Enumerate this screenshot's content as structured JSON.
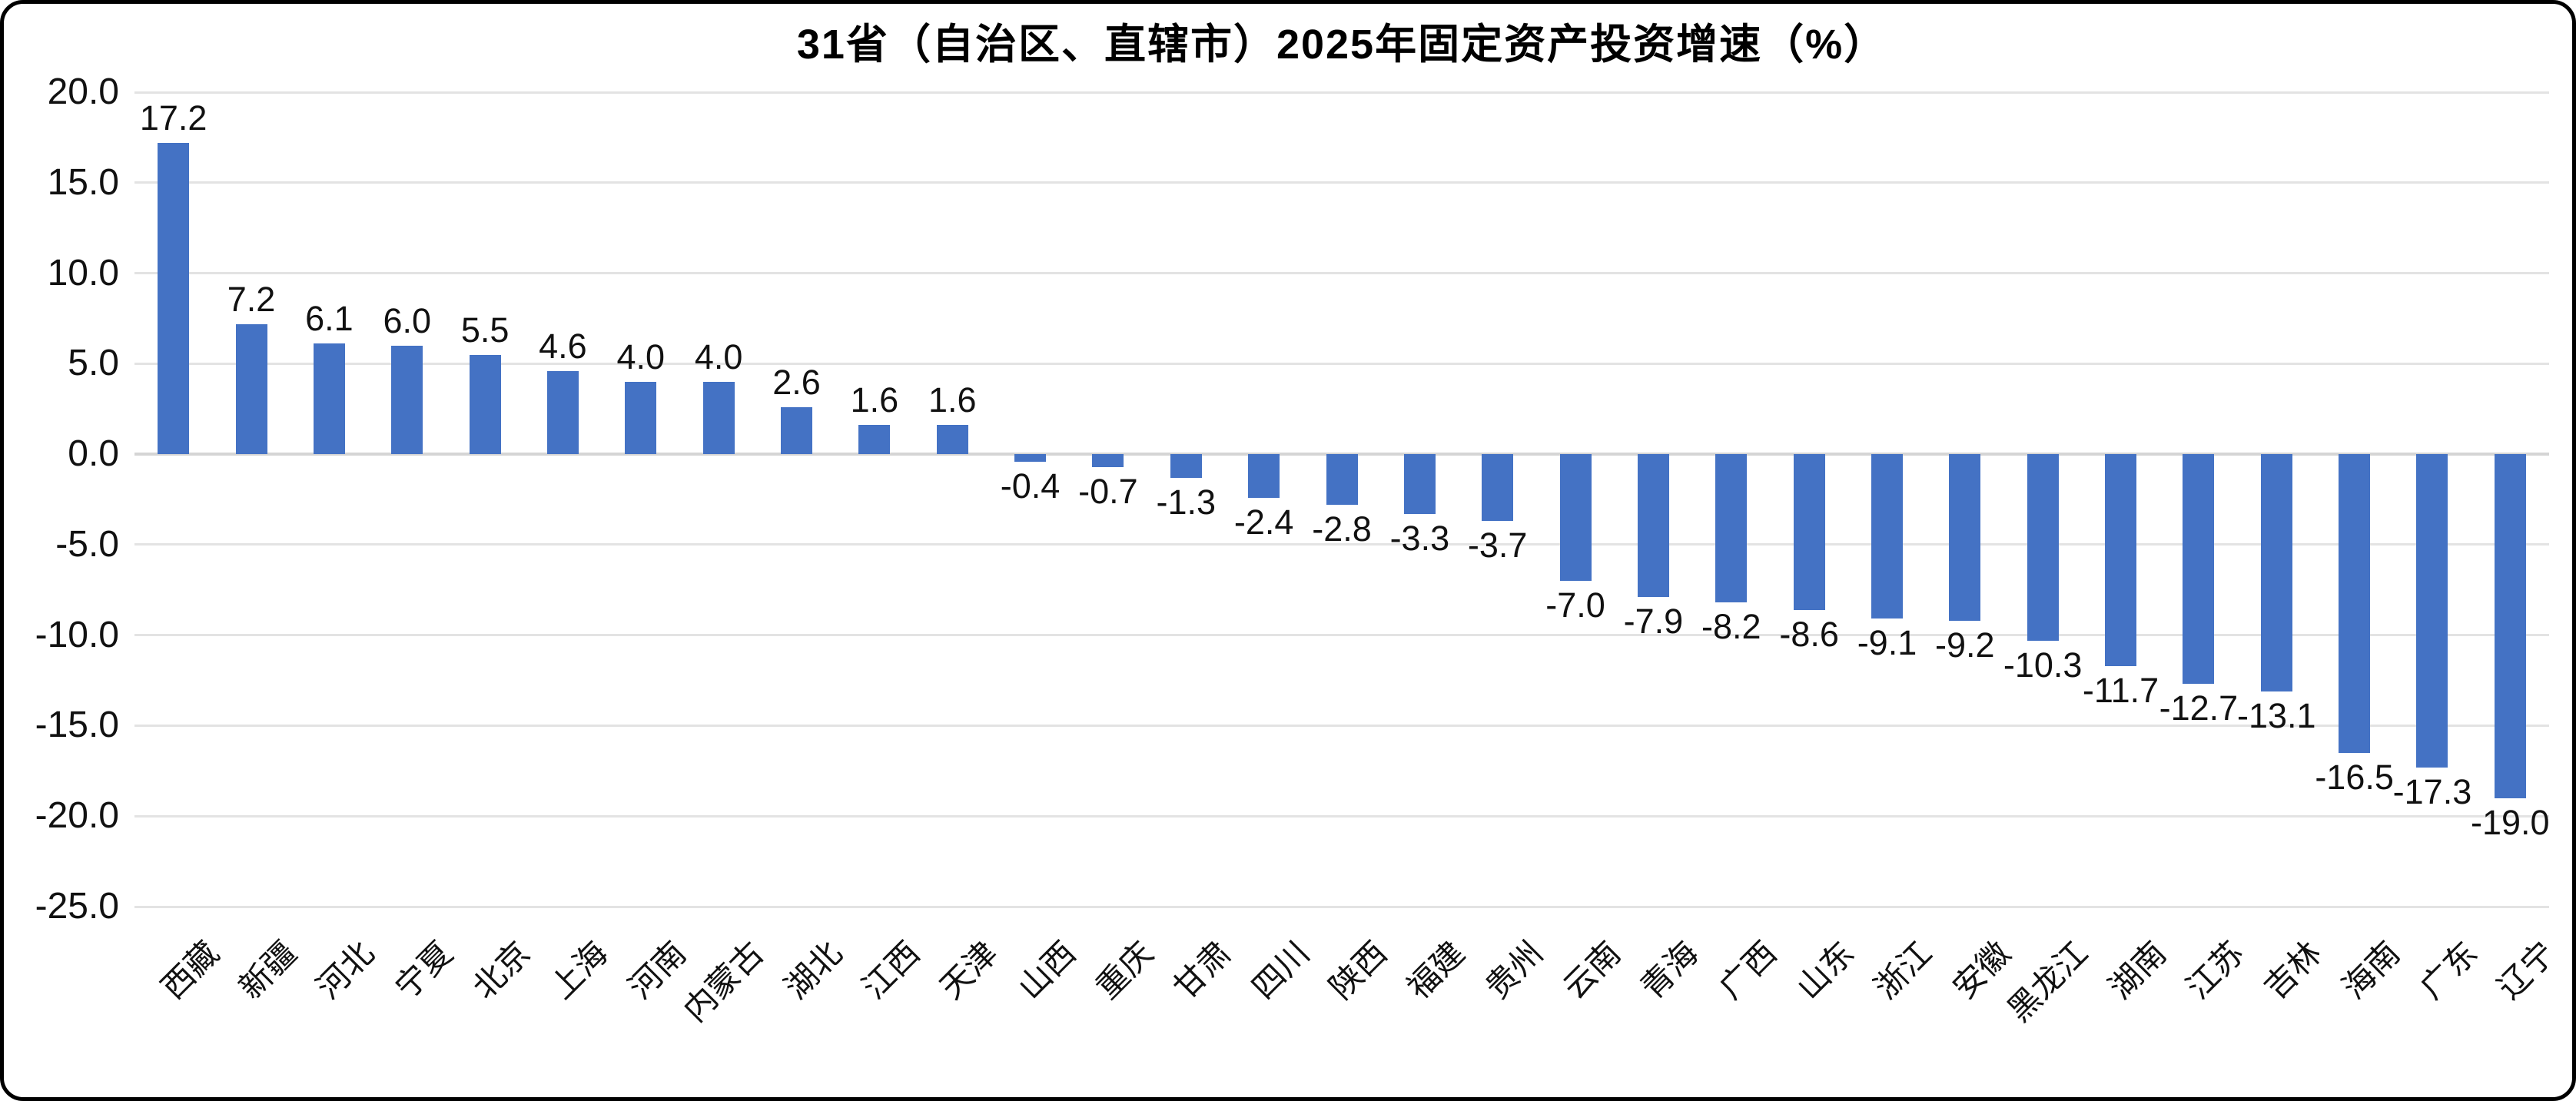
{
  "chart_data": {
    "type": "bar",
    "title": "31省（自治区、直辖市）2025年固定资产投资增速（%）",
    "categories": [
      "西藏",
      "新疆",
      "河北",
      "宁夏",
      "北京",
      "上海",
      "河南",
      "内蒙古",
      "湖北",
      "江西",
      "天津",
      "山西",
      "重庆",
      "甘肃",
      "四川",
      "陕西",
      "福建",
      "贵州",
      "云南",
      "青海",
      "广西",
      "山东",
      "浙江",
      "安徽",
      "黑龙江",
      "湖南",
      "江苏",
      "吉林",
      "海南",
      "广东",
      "辽宁"
    ],
    "values": [
      17.2,
      7.2,
      6.1,
      6.0,
      5.5,
      4.6,
      4.0,
      4.0,
      2.6,
      1.6,
      1.6,
      -0.4,
      -0.7,
      -1.3,
      -2.4,
      -2.8,
      -3.3,
      -3.7,
      -7.0,
      -7.9,
      -8.2,
      -8.6,
      -9.1,
      -9.2,
      -10.3,
      -11.7,
      -12.7,
      -13.1,
      -16.5,
      -17.3,
      -19.0
    ],
    "value_labels": [
      "17.2",
      "7.2",
      "6.1",
      "6.0",
      "5.5",
      "4.6",
      "4.0",
      "4.0",
      "2.6",
      "1.6",
      "1.6",
      "-0.4",
      "-0.7",
      "-1.3",
      "-2.4",
      "-2.8",
      "-3.3",
      "-3.7",
      "-7.0",
      "-7.9",
      "-8.2",
      "-8.6",
      "-9.1",
      "-9.2",
      "-10.3",
      "-11.7",
      "-12.7",
      "-13.1",
      "-16.5",
      "-17.3",
      "-19.0"
    ],
    "xlabel": "",
    "ylabel": "",
    "y_axis": {
      "tick_labels": [
        "20.0",
        "15.0",
        "10.0",
        "5.0",
        "0.0",
        "-5.0",
        "-10.0",
        "-15.0",
        "-20.0",
        "-25.0"
      ],
      "max": 20,
      "min": -25,
      "interval": 5
    },
    "ylim": [
      -25,
      20
    ],
    "grid": "horizontal-on",
    "legend_position": "none",
    "bar_color": "#4472C4",
    "gridline_color": "#E3E3E3",
    "zero_line_color": "#D5D5D5",
    "text_color": "#111111",
    "background_color": "#FFFFFF",
    "border_color": "#000000"
  }
}
